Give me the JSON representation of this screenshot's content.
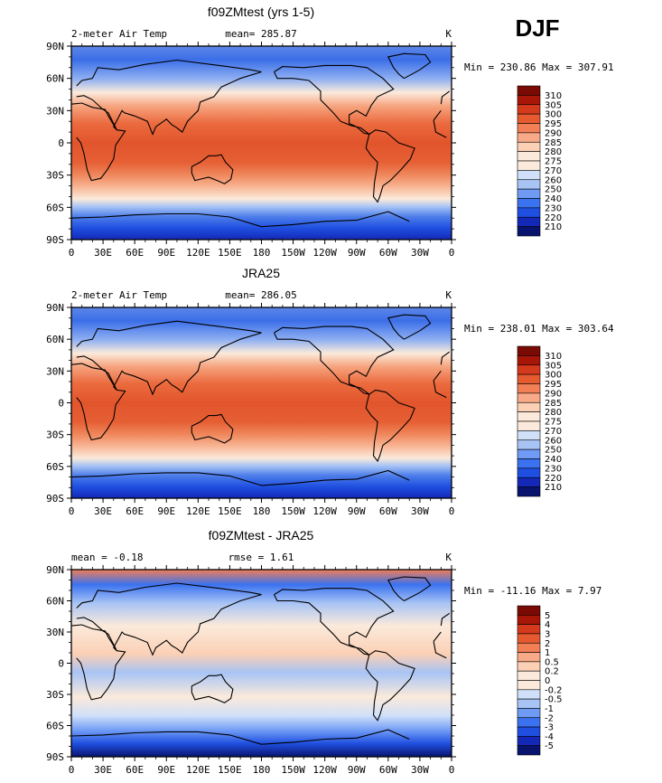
{
  "season": "DJF",
  "x_ticks": [
    "0",
    "30E",
    "60E",
    "90E",
    "120E",
    "150E",
    "180",
    "150W",
    "120W",
    "90W",
    "60W",
    "30W",
    "0"
  ],
  "y_ticks": [
    "90N",
    "60N",
    "30N",
    "0",
    "30S",
    "60S",
    "90S"
  ],
  "palettes": {
    "temp": [
      "#08136e",
      "#1428b8",
      "#1f4fe0",
      "#3b72f0",
      "#6f9bf5",
      "#a8c4f5",
      "#d0e0f8",
      "#fbeadb",
      "#fbd0b5",
      "#f8aa88",
      "#f27f56",
      "#e65a30",
      "#d43a1c",
      "#a81608",
      "#7a0a04"
    ],
    "diff": [
      "#08136e",
      "#1428b8",
      "#1f4fe0",
      "#3b72f0",
      "#6f9bf5",
      "#a8c4f5",
      "#d0e0f8",
      "#fbeadb",
      "#fbd0b5",
      "#f8aa88",
      "#f27f56",
      "#e65a30",
      "#d43a1c",
      "#a81608",
      "#7a0a04"
    ]
  },
  "panels": [
    {
      "title": "f09ZMtest (yrs 1-5)",
      "left_label": "2-meter Air Temp",
      "center_label": "mean= 285.87",
      "units": "K",
      "min_max": "Min = 230.86 Max = 307.91",
      "colorbar_labels": [
        "310",
        "305",
        "300",
        "295",
        "290",
        "285",
        "280",
        "275",
        "270",
        "260",
        "250",
        "240",
        "230",
        "220",
        "210"
      ]
    },
    {
      "title": "JRA25",
      "left_label": "2-meter Air Temp",
      "center_label": "mean= 286.05",
      "units": "K",
      "min_max": "Min = 238.01 Max = 303.64",
      "colorbar_labels": [
        "310",
        "305",
        "300",
        "295",
        "290",
        "285",
        "280",
        "275",
        "270",
        "260",
        "250",
        "240",
        "230",
        "220",
        "210"
      ]
    },
    {
      "title": "f09ZMtest - JRA25",
      "left_label": "mean =   -0.18",
      "center_label": "rmse =    1.61",
      "units": "K",
      "min_max": "Min = -11.16 Max =   7.97",
      "colorbar_labels": [
        "5",
        "4",
        "3",
        "2",
        "1",
        "0.5",
        "0.2",
        "0",
        "-0.2",
        "-0.5",
        "-1",
        "-2",
        "-3",
        "-4",
        "-5"
      ]
    }
  ],
  "chart_data": [
    {
      "type": "heatmap",
      "title": "f09ZMtest (yrs 1-5)",
      "variable": "2-meter Air Temp",
      "units": "K",
      "mean": 285.87,
      "min": 230.86,
      "max": 307.91,
      "x_range": [
        "0",
        "0"
      ],
      "y_range": [
        "90S",
        "90N"
      ],
      "levels": [
        210,
        220,
        230,
        240,
        250,
        260,
        270,
        275,
        280,
        285,
        290,
        295,
        300,
        305,
        310
      ],
      "lat_profile": {
        "lat": [
          90,
          75,
          60,
          45,
          30,
          15,
          0,
          -15,
          -30,
          -45,
          -60,
          -75,
          -90
        ],
        "value": [
          245,
          252,
          262,
          272,
          287,
          298,
          300,
          299,
          294,
          284,
          274,
          248,
          233
        ]
      }
    },
    {
      "type": "heatmap",
      "title": "JRA25",
      "variable": "2-meter Air Temp",
      "units": "K",
      "mean": 286.05,
      "min": 238.01,
      "max": 303.64,
      "x_range": [
        "0",
        "0"
      ],
      "y_range": [
        "90S",
        "90N"
      ],
      "levels": [
        210,
        220,
        230,
        240,
        250,
        260,
        270,
        275,
        280,
        285,
        290,
        295,
        300,
        305,
        310
      ],
      "lat_profile": {
        "lat": [
          90,
          75,
          60,
          45,
          30,
          15,
          0,
          -15,
          -30,
          -45,
          -60,
          -75,
          -90
        ],
        "value": [
          247,
          253,
          263,
          273,
          288,
          298,
          300,
          299,
          294,
          285,
          275,
          250,
          238
        ]
      }
    },
    {
      "type": "heatmap",
      "title": "f09ZMtest - JRA25",
      "units": "K",
      "mean": -0.18,
      "rmse": 1.61,
      "min": -11.16,
      "max": 7.97,
      "x_range": [
        "0",
        "0"
      ],
      "y_range": [
        "90S",
        "90N"
      ],
      "levels": [
        -5,
        -4,
        -3,
        -2,
        -1,
        -0.5,
        -0.2,
        0,
        0.2,
        0.5,
        1,
        2,
        3,
        4,
        5
      ]
    }
  ]
}
